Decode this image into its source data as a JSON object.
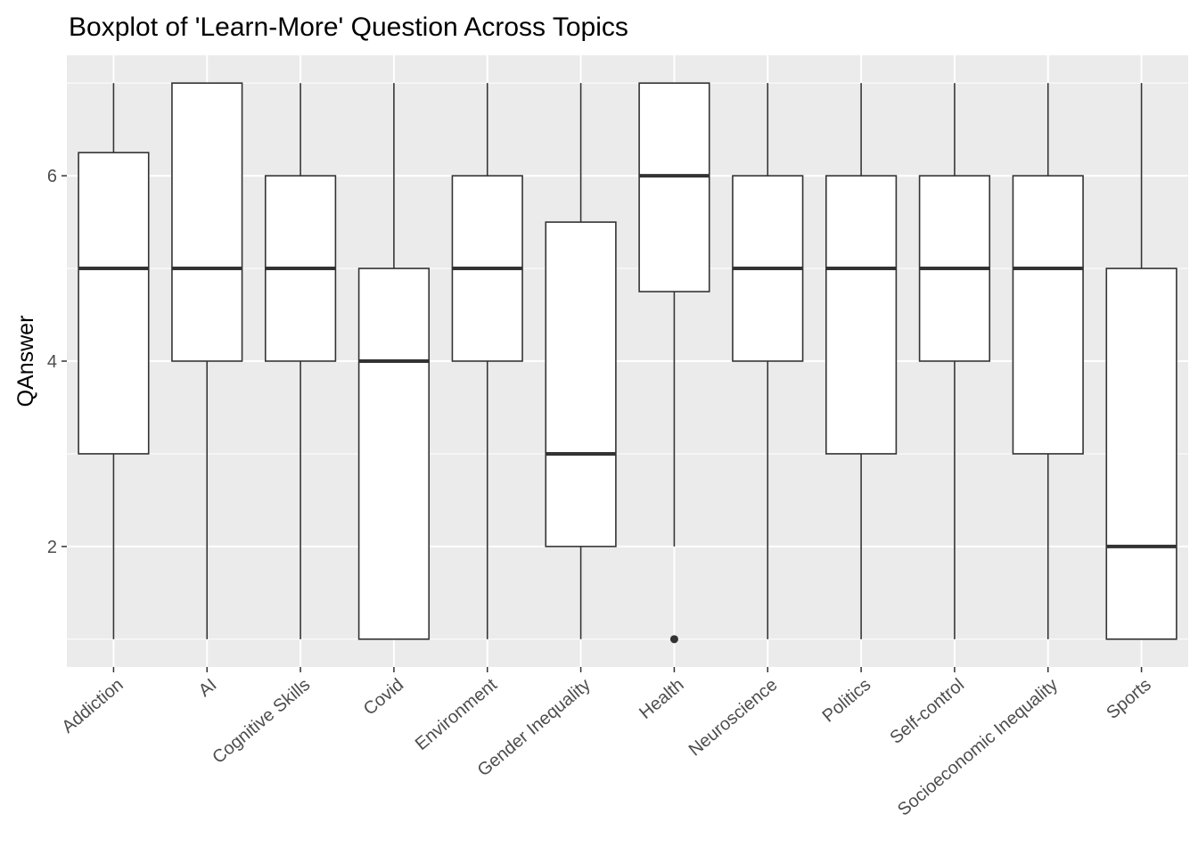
{
  "chart_data": {
    "type": "boxplot",
    "title": "Boxplot of 'Learn-More' Question Across Topics",
    "xlabel": "",
    "ylabel": "QAnswer",
    "ylim": [
      0.7,
      7.3
    ],
    "yticks": [
      2,
      4,
      6
    ],
    "grid": true,
    "panel_background": "#ebebeb",
    "box_fill": "#ffffff",
    "line_color": "#333333",
    "categories": [
      "Addiction",
      "AI",
      "Cognitive Skills",
      "Covid",
      "Environment",
      "Gender Inequality",
      "Health",
      "Neuroscience",
      "Politics",
      "Self-control",
      "Socioeconomic Inequality",
      "Sports"
    ],
    "boxes": [
      {
        "category": "Addiction",
        "min": 1,
        "q1": 3,
        "median": 5,
        "q3": 6.25,
        "max": 7,
        "outliers": []
      },
      {
        "category": "AI",
        "min": 1,
        "q1": 4,
        "median": 5,
        "q3": 7,
        "max": 7,
        "outliers": []
      },
      {
        "category": "Cognitive Skills",
        "min": 1,
        "q1": 4,
        "median": 5,
        "q3": 6,
        "max": 7,
        "outliers": []
      },
      {
        "category": "Covid",
        "min": 1,
        "q1": 1,
        "median": 4,
        "q3": 5,
        "max": 7,
        "outliers": []
      },
      {
        "category": "Environment",
        "min": 1,
        "q1": 4,
        "median": 5,
        "q3": 6,
        "max": 7,
        "outliers": []
      },
      {
        "category": "Gender Inequality",
        "min": 1,
        "q1": 2,
        "median": 3,
        "q3": 5.5,
        "max": 7,
        "outliers": []
      },
      {
        "category": "Health",
        "min": 2,
        "q1": 4.75,
        "median": 6,
        "q3": 7,
        "max": 7,
        "outliers": [
          1
        ]
      },
      {
        "category": "Neuroscience",
        "min": 1,
        "q1": 4,
        "median": 5,
        "q3": 6,
        "max": 7,
        "outliers": []
      },
      {
        "category": "Politics",
        "min": 1,
        "q1": 3,
        "median": 5,
        "q3": 6,
        "max": 7,
        "outliers": []
      },
      {
        "category": "Self-control",
        "min": 1,
        "q1": 4,
        "median": 5,
        "q3": 6,
        "max": 7,
        "outliers": []
      },
      {
        "category": "Socioeconomic Inequality",
        "min": 1,
        "q1": 3,
        "median": 5,
        "q3": 6,
        "max": 7,
        "outliers": []
      },
      {
        "category": "Sports",
        "min": 1,
        "q1": 1,
        "median": 2,
        "q3": 5,
        "max": 7,
        "outliers": []
      }
    ]
  }
}
